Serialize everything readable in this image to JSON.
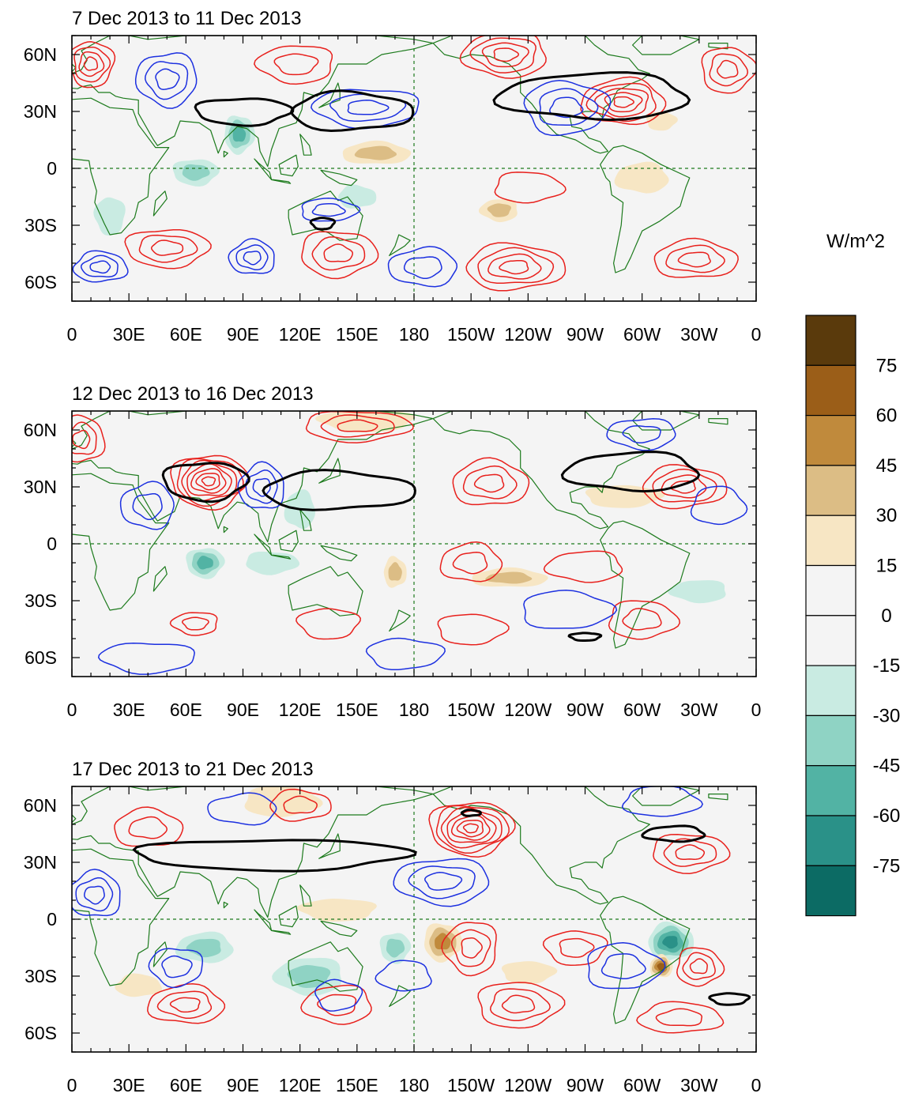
{
  "colors": {
    "ocean": "#f4f4f4",
    "coast": "#1c7a1c",
    "ref": "#1c7a1c",
    "pos_contour": "#e8201c",
    "neg_contour": "#1c30e0",
    "bold_contour": "#000000",
    "browns": [
      "#f7e6c4",
      "#dcbd85",
      "#c08a3c",
      "#9b5e18",
      "#5a3a0c"
    ],
    "teals": [
      "#c9ebe2",
      "#8fd3c4",
      "#52b3a4",
      "#2a9188",
      "#0c6b64",
      "#063b34"
    ]
  },
  "longitude_ticks": [
    "0",
    "30E",
    "60E",
    "90E",
    "120E",
    "150E",
    "180",
    "150W",
    "120W",
    "90W",
    "60W",
    "30W",
    "0"
  ],
  "latitude_ticks": [
    "60N",
    "30N",
    "0",
    "30S",
    "60S"
  ],
  "panels": [
    {
      "title": "7 Dec 2013 to 11 Dec 2013",
      "contours": [
        {
          "kind": "pos",
          "lon": 50,
          "lat": -42,
          "a": 22,
          "b": 10,
          "n": 3
        },
        {
          "kind": "pos",
          "lon": 140,
          "lat": -45,
          "a": 20,
          "b": 12,
          "n": 3
        },
        {
          "kind": "pos",
          "lon": 233,
          "lat": -52,
          "a": 26,
          "b": 12,
          "n": 4
        },
        {
          "kind": "pos",
          "lon": 328,
          "lat": -48,
          "a": 22,
          "b": 10,
          "n": 3
        },
        {
          "kind": "pos",
          "lon": 290,
          "lat": 35,
          "a": 22,
          "b": 12,
          "n": 5
        },
        {
          "kind": "pos",
          "lon": 228,
          "lat": 60,
          "a": 22,
          "b": 12,
          "n": 4
        },
        {
          "kind": "pos",
          "lon": 118,
          "lat": 55,
          "a": 20,
          "b": 10,
          "n": 2
        },
        {
          "kind": "pos",
          "lon": 10,
          "lat": 55,
          "a": 12,
          "b": 12,
          "n": 4
        },
        {
          "kind": "pos",
          "lon": 345,
          "lat": 52,
          "a": 14,
          "b": 12,
          "n": 3
        },
        {
          "kind": "pos",
          "lon": 240,
          "lat": -10,
          "a": 18,
          "b": 8,
          "n": 1
        },
        {
          "kind": "neg",
          "lon": 15,
          "lat": -52,
          "a": 14,
          "b": 8,
          "n": 3
        },
        {
          "kind": "neg",
          "lon": 95,
          "lat": -47,
          "a": 12,
          "b": 9,
          "n": 3
        },
        {
          "kind": "neg",
          "lon": 185,
          "lat": -52,
          "a": 18,
          "b": 10,
          "n": 2
        },
        {
          "kind": "neg",
          "lon": 50,
          "lat": 47,
          "a": 16,
          "b": 14,
          "n": 3
        },
        {
          "kind": "neg",
          "lon": 155,
          "lat": 32,
          "a": 28,
          "b": 10,
          "n": 3
        },
        {
          "kind": "neg",
          "lon": 260,
          "lat": 32,
          "a": 22,
          "b": 14,
          "n": 3
        },
        {
          "kind": "neg",
          "lon": 135,
          "lat": -22,
          "a": 15,
          "b": 6,
          "n": 2
        }
      ],
      "bold": [
        {
          "lon": 90,
          "lat": 30,
          "a": 25,
          "b": 7
        },
        {
          "lon": 147,
          "lat": 30,
          "a": 32,
          "b": 10
        },
        {
          "lon": 275,
          "lat": 38,
          "a": 50,
          "b": 12
        },
        {
          "lon": 132,
          "lat": -29,
          "a": 6,
          "b": 3
        }
      ],
      "fills": [
        {
          "lon": 65,
          "lat": -2,
          "a": 12,
          "b": 7,
          "s": -2
        },
        {
          "lon": 88,
          "lat": 18,
          "a": 8,
          "b": 10,
          "s": -3
        },
        {
          "lon": 150,
          "lat": -15,
          "a": 10,
          "b": 6,
          "s": -1
        },
        {
          "lon": 160,
          "lat": 8,
          "a": 18,
          "b": 6,
          "s": 2
        },
        {
          "lon": 300,
          "lat": -5,
          "a": 14,
          "b": 8,
          "s": 1
        },
        {
          "lon": 225,
          "lat": -22,
          "a": 10,
          "b": 6,
          "s": 2
        },
        {
          "lon": 20,
          "lat": -25,
          "a": 8,
          "b": 10,
          "s": -1
        },
        {
          "lon": 310,
          "lat": 25,
          "a": 8,
          "b": 5,
          "s": 1
        }
      ]
    },
    {
      "title": "12 Dec 2013 to 16 Dec 2013",
      "contours": [
        {
          "kind": "pos",
          "lon": 72,
          "lat": 33,
          "a": 20,
          "b": 14,
          "n": 7
        },
        {
          "kind": "pos",
          "lon": 150,
          "lat": 62,
          "a": 28,
          "b": 8,
          "n": 3
        },
        {
          "kind": "pos",
          "lon": 322,
          "lat": 30,
          "a": 22,
          "b": 11,
          "n": 4
        },
        {
          "kind": "pos",
          "lon": 220,
          "lat": 32,
          "a": 20,
          "b": 12,
          "n": 3
        },
        {
          "kind": "pos",
          "lon": 210,
          "lat": -10,
          "a": 16,
          "b": 10,
          "n": 2
        },
        {
          "kind": "pos",
          "lon": 270,
          "lat": -12,
          "a": 20,
          "b": 8,
          "n": 1
        },
        {
          "kind": "pos",
          "lon": 65,
          "lat": -42,
          "a": 12,
          "b": 6,
          "n": 2
        },
        {
          "kind": "pos",
          "lon": 135,
          "lat": -42,
          "a": 16,
          "b": 8,
          "n": 1
        },
        {
          "kind": "pos",
          "lon": 210,
          "lat": -45,
          "a": 18,
          "b": 8,
          "n": 1
        },
        {
          "kind": "pos",
          "lon": 300,
          "lat": -40,
          "a": 18,
          "b": 10,
          "n": 2
        },
        {
          "kind": "pos",
          "lon": 5,
          "lat": 55,
          "a": 12,
          "b": 12,
          "n": 3
        },
        {
          "kind": "neg",
          "lon": 100,
          "lat": 30,
          "a": 12,
          "b": 12,
          "n": 3
        },
        {
          "kind": "neg",
          "lon": 40,
          "lat": 20,
          "a": 14,
          "b": 12,
          "n": 2
        },
        {
          "kind": "neg",
          "lon": 300,
          "lat": 58,
          "a": 18,
          "b": 8,
          "n": 2
        },
        {
          "kind": "neg",
          "lon": 40,
          "lat": -60,
          "a": 25,
          "b": 8,
          "n": 1
        },
        {
          "kind": "neg",
          "lon": 175,
          "lat": -58,
          "a": 20,
          "b": 8,
          "n": 1
        },
        {
          "kind": "neg",
          "lon": 260,
          "lat": -35,
          "a": 24,
          "b": 10,
          "n": 1
        },
        {
          "kind": "neg",
          "lon": 340,
          "lat": 20,
          "a": 14,
          "b": 10,
          "n": 1
        }
      ],
      "bold": [
        {
          "lon": 70,
          "lat": 33,
          "a": 22,
          "b": 10
        },
        {
          "lon": 140,
          "lat": 28,
          "a": 40,
          "b": 10
        },
        {
          "lon": 295,
          "lat": 38,
          "a": 35,
          "b": 10
        },
        {
          "lon": 270,
          "lat": -49,
          "a": 8,
          "b": 2
        }
      ],
      "fills": [
        {
          "lon": 70,
          "lat": -10,
          "a": 10,
          "b": 8,
          "s": -3
        },
        {
          "lon": 105,
          "lat": -10,
          "a": 14,
          "b": 6,
          "s": -1
        },
        {
          "lon": 170,
          "lat": -15,
          "a": 6,
          "b": 8,
          "s": 2
        },
        {
          "lon": 230,
          "lat": -18,
          "a": 20,
          "b": 5,
          "s": 2
        },
        {
          "lon": 120,
          "lat": 18,
          "a": 8,
          "b": 10,
          "s": -1
        },
        {
          "lon": 330,
          "lat": -25,
          "a": 15,
          "b": 6,
          "s": -1
        },
        {
          "lon": 155,
          "lat": 65,
          "a": 25,
          "b": 6,
          "s": 1
        },
        {
          "lon": 290,
          "lat": 25,
          "a": 20,
          "b": 6,
          "s": 1
        }
      ]
    },
    {
      "title": "17 Dec 2013 to 21 Dec 2013",
      "contours": [
        {
          "kind": "pos",
          "lon": 210,
          "lat": 48,
          "a": 22,
          "b": 14,
          "n": 7
        },
        {
          "kind": "pos",
          "lon": 325,
          "lat": 35,
          "a": 20,
          "b": 10,
          "n": 3
        },
        {
          "kind": "pos",
          "lon": 120,
          "lat": 60,
          "a": 16,
          "b": 8,
          "n": 2
        },
        {
          "kind": "pos",
          "lon": 40,
          "lat": 48,
          "a": 18,
          "b": 10,
          "n": 2
        },
        {
          "kind": "pos",
          "lon": 60,
          "lat": -45,
          "a": 20,
          "b": 10,
          "n": 3
        },
        {
          "kind": "pos",
          "lon": 140,
          "lat": -45,
          "a": 18,
          "b": 10,
          "n": 2
        },
        {
          "kind": "pos",
          "lon": 210,
          "lat": -15,
          "a": 14,
          "b": 14,
          "n": 3
        },
        {
          "kind": "pos",
          "lon": 265,
          "lat": -15,
          "a": 16,
          "b": 9,
          "n": 2
        },
        {
          "kind": "pos",
          "lon": 235,
          "lat": -45,
          "a": 22,
          "b": 12,
          "n": 3
        },
        {
          "kind": "pos",
          "lon": 330,
          "lat": -25,
          "a": 12,
          "b": 10,
          "n": 3
        },
        {
          "kind": "pos",
          "lon": 320,
          "lat": -52,
          "a": 22,
          "b": 8,
          "n": 2
        },
        {
          "kind": "neg",
          "lon": 12,
          "lat": 13,
          "a": 14,
          "b": 12,
          "n": 3
        },
        {
          "kind": "neg",
          "lon": 90,
          "lat": 58,
          "a": 18,
          "b": 8,
          "n": 1
        },
        {
          "kind": "neg",
          "lon": 195,
          "lat": 20,
          "a": 25,
          "b": 12,
          "n": 3
        },
        {
          "kind": "neg",
          "lon": 55,
          "lat": -25,
          "a": 14,
          "b": 10,
          "n": 2
        },
        {
          "kind": "neg",
          "lon": 140,
          "lat": -40,
          "a": 12,
          "b": 8,
          "n": 1
        },
        {
          "kind": "neg",
          "lon": 290,
          "lat": -25,
          "a": 20,
          "b": 12,
          "n": 2
        },
        {
          "kind": "neg",
          "lon": 310,
          "lat": 62,
          "a": 20,
          "b": 8,
          "n": 1
        },
        {
          "kind": "neg",
          "lon": 175,
          "lat": -30,
          "a": 14,
          "b": 8,
          "n": 1
        }
      ],
      "bold": [
        {
          "lon": 105,
          "lat": 34,
          "a": 72,
          "b": 8
        },
        {
          "lon": 210,
          "lat": 56,
          "a": 5,
          "b": 1.5
        },
        {
          "lon": 317,
          "lat": 45,
          "a": 16,
          "b": 4
        },
        {
          "lon": 346,
          "lat": -42,
          "a": 10,
          "b": 3
        }
      ],
      "fills": [
        {
          "lon": 170,
          "lat": -15,
          "a": 8,
          "b": 8,
          "s": -2
        },
        {
          "lon": 195,
          "lat": -12,
          "a": 10,
          "b": 10,
          "s": 3
        },
        {
          "lon": 315,
          "lat": -12,
          "a": 12,
          "b": 10,
          "s": -4
        },
        {
          "lon": 310,
          "lat": -25,
          "a": 6,
          "b": 6,
          "s": 4
        },
        {
          "lon": 70,
          "lat": -15,
          "a": 15,
          "b": 8,
          "s": -2
        },
        {
          "lon": 125,
          "lat": -30,
          "a": 18,
          "b": 10,
          "s": -2
        },
        {
          "lon": 140,
          "lat": 5,
          "a": 20,
          "b": 6,
          "s": 1
        },
        {
          "lon": 240,
          "lat": -28,
          "a": 14,
          "b": 6,
          "s": 1
        },
        {
          "lon": 110,
          "lat": 62,
          "a": 20,
          "b": 8,
          "s": 1
        },
        {
          "lon": 35,
          "lat": -35,
          "a": 12,
          "b": 6,
          "s": 1
        }
      ]
    }
  ],
  "colorbar": {
    "unit": "W/m^2",
    "labels": [
      "75",
      "60",
      "45",
      "30",
      "15",
      "0",
      "-15",
      "-30",
      "-45",
      "-60",
      "-75"
    ],
    "colors": [
      "#5a3a0c",
      "#9b5e18",
      "#c08a3c",
      "#dcbd85",
      "#f7e6c4",
      "#f4f4f4",
      "#f4f4f4",
      "#c9ebe2",
      "#8fd3c4",
      "#52b3a4",
      "#2a9188",
      "#0c6b64"
    ]
  }
}
